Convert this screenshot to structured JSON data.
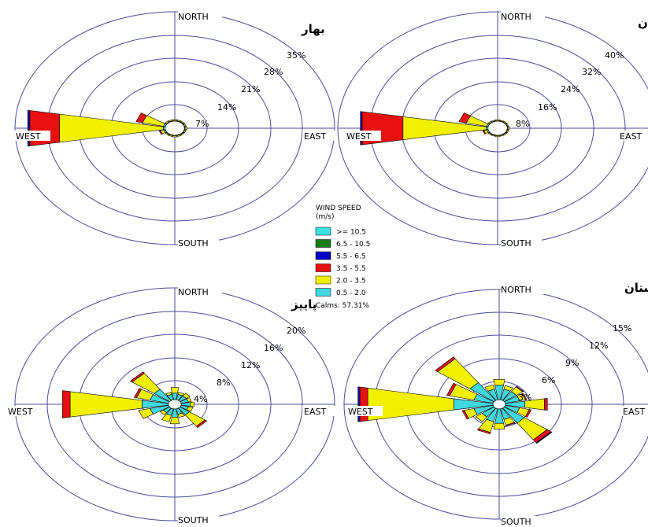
{
  "directions": {
    "north": "NORTH",
    "south": "SOUTH",
    "east": "EAST",
    "west": "WEST"
  },
  "chart_data": [
    {
      "type": "polar-bar",
      "title": "بهار",
      "rings": [
        "7%",
        "14%",
        "21%",
        "28%",
        "35%"
      ],
      "max_percent": 35,
      "calm_ratio": 0.06,
      "stacked_series": [
        "0.5 - 2.0",
        "2.0 - 3.5",
        "3.5 - 5.5",
        "5.5 - 6.5"
      ],
      "petals": [
        {
          "direction_deg": 270,
          "values": [
            0.5,
            24.5,
            7.0,
            0.5
          ]
        },
        {
          "direction_deg": 292.5,
          "values": [
            0.5,
            5.0,
            1.5,
            0
          ]
        },
        {
          "direction_deg": 247.5,
          "values": [
            0.4,
            0.8,
            0.3,
            0
          ]
        },
        {
          "direction_deg": 0,
          "values": [
            0.2,
            0.4,
            0,
            0
          ]
        },
        {
          "direction_deg": 22.5,
          "values": [
            0.2,
            0.3,
            0,
            0
          ]
        },
        {
          "direction_deg": 45,
          "values": [
            0.2,
            0.3,
            0,
            0
          ]
        },
        {
          "direction_deg": 67.5,
          "values": [
            0.2,
            0.3,
            0,
            0
          ]
        },
        {
          "direction_deg": 90,
          "values": [
            0.2,
            0.4,
            0,
            0
          ]
        },
        {
          "direction_deg": 112.5,
          "values": [
            0.2,
            0.3,
            0,
            0
          ]
        },
        {
          "direction_deg": 135,
          "values": [
            0.2,
            0.3,
            0,
            0
          ]
        },
        {
          "direction_deg": 157.5,
          "values": [
            0.2,
            0.3,
            0,
            0
          ]
        },
        {
          "direction_deg": 180,
          "values": [
            0.2,
            0.4,
            0,
            0
          ]
        },
        {
          "direction_deg": 202.5,
          "values": [
            0.2,
            0.3,
            0,
            0
          ]
        },
        {
          "direction_deg": 225,
          "values": [
            0.2,
            0.3,
            0,
            0
          ]
        },
        {
          "direction_deg": 315,
          "values": [
            0.2,
            0.4,
            0,
            0
          ]
        },
        {
          "direction_deg": 337.5,
          "values": [
            0.2,
            0.3,
            0,
            0
          ]
        }
      ]
    },
    {
      "type": "polar-bar",
      "title": "تابستان",
      "rings": [
        "8%",
        "16%",
        "24%",
        "32%",
        "40%"
      ],
      "max_percent": 40,
      "calm_ratio": 0.06,
      "stacked_series": [
        "0.5 - 2.0",
        "2.0 - 3.5",
        "3.5 - 5.5",
        "5.5 - 6.5"
      ],
      "petals": [
        {
          "direction_deg": 270,
          "values": [
            0.5,
            22.5,
            11.0,
            0.5
          ]
        },
        {
          "direction_deg": 292.5,
          "values": [
            0.5,
            5.5,
            2.0,
            0
          ]
        },
        {
          "direction_deg": 247.5,
          "values": [
            0.4,
            0.8,
            0.3,
            0
          ]
        },
        {
          "direction_deg": 0,
          "values": [
            0.2,
            0.4,
            0,
            0
          ]
        },
        {
          "direction_deg": 22.5,
          "values": [
            0.2,
            0.3,
            0,
            0
          ]
        },
        {
          "direction_deg": 45,
          "values": [
            0.2,
            0.3,
            0,
            0
          ]
        },
        {
          "direction_deg": 67.5,
          "values": [
            0.2,
            0.3,
            0,
            0
          ]
        },
        {
          "direction_deg": 90,
          "values": [
            0.2,
            0.4,
            0,
            0
          ]
        },
        {
          "direction_deg": 112.5,
          "values": [
            0.2,
            0.3,
            0,
            0
          ]
        },
        {
          "direction_deg": 135,
          "values": [
            0.2,
            0.3,
            0,
            0
          ]
        },
        {
          "direction_deg": 157.5,
          "values": [
            0.2,
            0.3,
            0,
            0
          ]
        },
        {
          "direction_deg": 180,
          "values": [
            0.2,
            0.4,
            0,
            0
          ]
        },
        {
          "direction_deg": 202.5,
          "values": [
            0.2,
            0.3,
            0,
            0
          ]
        },
        {
          "direction_deg": 225,
          "values": [
            0.2,
            0.3,
            0,
            0
          ]
        },
        {
          "direction_deg": 315,
          "values": [
            0.2,
            0.4,
            0,
            0
          ]
        },
        {
          "direction_deg": 337.5,
          "values": [
            0.2,
            0.3,
            0,
            0
          ]
        }
      ]
    },
    {
      "type": "polar-bar",
      "title": "پاییز",
      "rings": [
        "4%",
        "8%",
        "12%",
        "16%",
        "20%"
      ],
      "max_percent": 20,
      "calm_ratio": 0.04,
      "stacked_series": [
        "0.5 - 2.0",
        "2.0 - 3.5",
        "3.5 - 5.5",
        "5.5 - 6.5"
      ],
      "petals": [
        {
          "direction_deg": 270,
          "values": [
            3.5,
            9.5,
            1.0,
            0
          ]
        },
        {
          "direction_deg": 292.5,
          "values": [
            2.5,
            1.8,
            0.3,
            0
          ]
        },
        {
          "direction_deg": 315,
          "values": [
            2.5,
            3.5,
            0.3,
            0
          ]
        },
        {
          "direction_deg": 247.5,
          "values": [
            2.5,
            1.5,
            0,
            0
          ]
        },
        {
          "direction_deg": 0,
          "values": [
            1.2,
            1.0,
            0,
            0
          ]
        },
        {
          "direction_deg": 22.5,
          "values": [
            1.0,
            0.4,
            0,
            0
          ]
        },
        {
          "direction_deg": 45,
          "values": [
            1.0,
            0.6,
            0,
            0
          ]
        },
        {
          "direction_deg": 67.5,
          "values": [
            1.0,
            0.4,
            0,
            0
          ]
        },
        {
          "direction_deg": 90,
          "values": [
            1.2,
            0.5,
            0,
            0
          ]
        },
        {
          "direction_deg": 112.5,
          "values": [
            1.0,
            0.6,
            0,
            0
          ]
        },
        {
          "direction_deg": 135,
          "values": [
            1.5,
            2.5,
            0.3,
            0
          ]
        },
        {
          "direction_deg": 157.5,
          "values": [
            1.0,
            0.6,
            0,
            0
          ]
        },
        {
          "direction_deg": 180,
          "values": [
            1.5,
            1.2,
            0,
            0
          ]
        },
        {
          "direction_deg": 202.5,
          "values": [
            1.2,
            1.2,
            0,
            0
          ]
        },
        {
          "direction_deg": 225,
          "values": [
            1.0,
            0.5,
            0,
            0
          ]
        },
        {
          "direction_deg": 337.5,
          "values": [
            1.0,
            0.4,
            0,
            0
          ]
        }
      ]
    },
    {
      "type": "polar-bar",
      "title": "زمستان",
      "rings": [
        "3%",
        "6%",
        "9%",
        "12%",
        "15%"
      ],
      "max_percent": 15,
      "calm_ratio": 0.04,
      "stacked_series": [
        "0.5 - 2.0",
        "2.0 - 3.5",
        "3.5 - 5.5",
        "5.5 - 6.5"
      ],
      "petals": [
        {
          "direction_deg": 270,
          "values": [
            4.0,
            8.8,
            0.8,
            0.2
          ]
        },
        {
          "direction_deg": 292.5,
          "values": [
            2.0,
            2.5,
            0.3,
            0
          ]
        },
        {
          "direction_deg": 315,
          "values": [
            3.0,
            4.0,
            0.3,
            0
          ]
        },
        {
          "direction_deg": 247.5,
          "values": [
            2.0,
            1.0,
            0.2,
            0
          ]
        },
        {
          "direction_deg": 0,
          "values": [
            2.0,
            0.8,
            0,
            0
          ]
        },
        {
          "direction_deg": 22.5,
          "values": [
            1.5,
            0.5,
            0,
            0
          ]
        },
        {
          "direction_deg": 45,
          "values": [
            1.5,
            0.8,
            0.1,
            0
          ]
        },
        {
          "direction_deg": 67.5,
          "values": [
            1.5,
            0.6,
            0.1,
            0
          ]
        },
        {
          "direction_deg": 90,
          "values": [
            2.0,
            2.0,
            0.3,
            0
          ]
        },
        {
          "direction_deg": 112.5,
          "values": [
            1.5,
            1.0,
            0.2,
            0
          ]
        },
        {
          "direction_deg": 135,
          "values": [
            2.5,
            2.8,
            0.5,
            0.1
          ]
        },
        {
          "direction_deg": 157.5,
          "values": [
            1.5,
            0.8,
            0.1,
            0
          ]
        },
        {
          "direction_deg": 180,
          "values": [
            2.0,
            0.8,
            0,
            0
          ]
        },
        {
          "direction_deg": 202.5,
          "values": [
            1.8,
            1.5,
            0.2,
            0
          ]
        },
        {
          "direction_deg": 225,
          "values": [
            1.5,
            0.8,
            0,
            0
          ]
        },
        {
          "direction_deg": 337.5,
          "values": [
            1.5,
            0.6,
            0,
            0
          ]
        }
      ]
    }
  ],
  "legend": {
    "title": "WIND SPEED",
    "unit": "(m/s)",
    "items": [
      {
        "label": ">= 10.5",
        "color": "#3fe0e0"
      },
      {
        "label": "6.5 - 10.5",
        "color": "#1a7a1a"
      },
      {
        "label": "5.5 - 6.5",
        "color": "#0000c8"
      },
      {
        "label": "3.5 - 5.5",
        "color": "#e81010"
      },
      {
        "label": "2.0 - 3.5",
        "color": "#f0f000"
      },
      {
        "label": "0.5 - 2.0",
        "color": "#40d8e0"
      }
    ],
    "calms": "Calms: 57.31%"
  },
  "series_colors": [
    "#40d8e0",
    "#f0f000",
    "#e81010",
    "#1010a0"
  ]
}
